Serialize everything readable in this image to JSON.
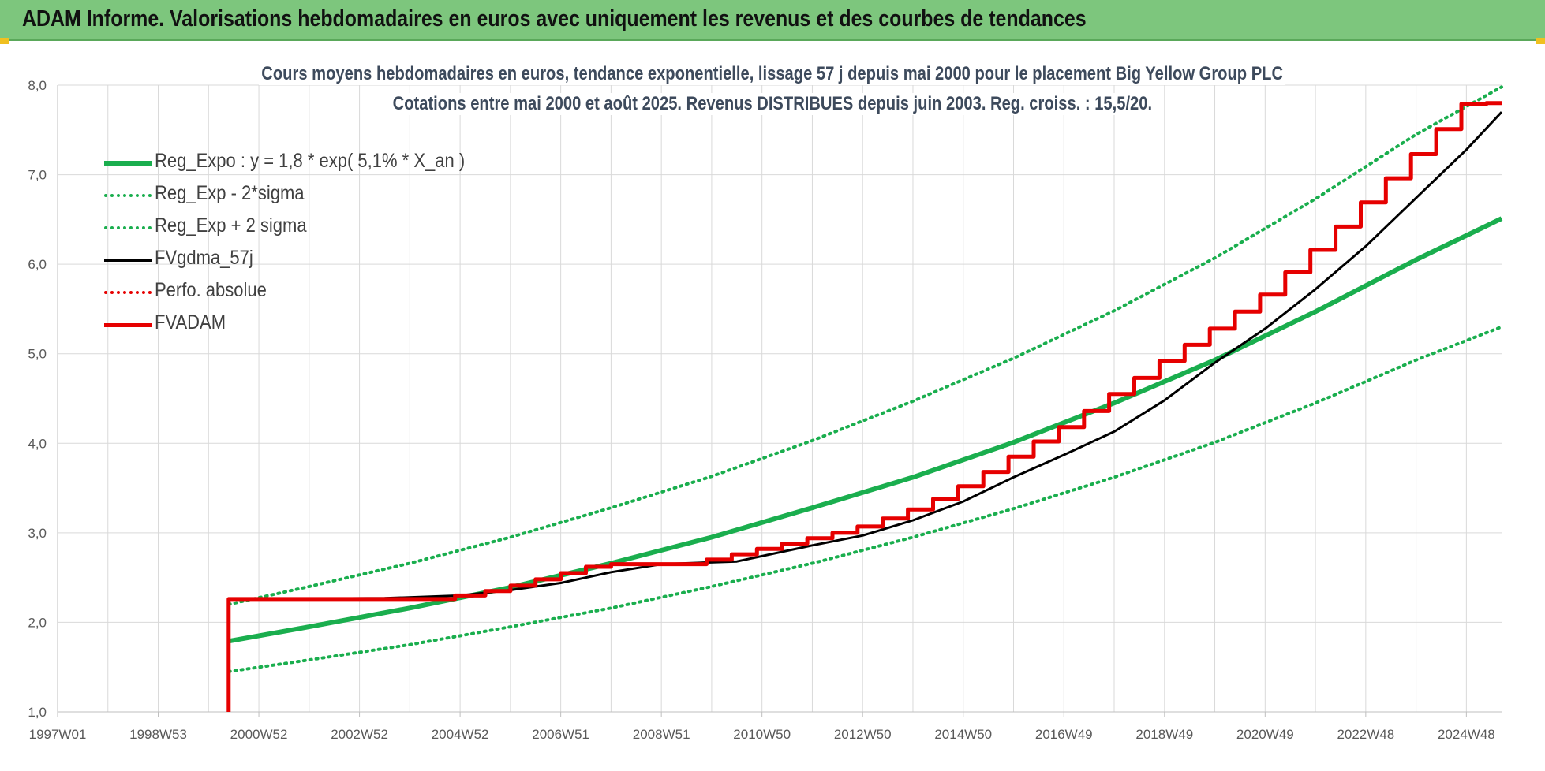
{
  "header": {
    "title": "ADAM Informe. Valorisations hebdomadaires en euros avec uniquement les revenus et des courbes de tendances"
  },
  "chart_data": {
    "type": "line",
    "title_line1": "Cours moyens hebdomadaires en euros, tendance exponentielle, lissage 57 j depuis mai 2000 pour le placement Big Yellow Group PLC",
    "title_line2": "Cotations entre mai 2000 et août 2025.  Revenus DISTRIBUES depuis juin 2003. Reg. croiss. : 15,5/20.",
    "x_tick_labels": [
      "1997W01",
      "1998W53",
      "2000W52",
      "2002W52",
      "2004W52",
      "2006W51",
      "2008W51",
      "2010W50",
      "2012W50",
      "2014W50",
      "2016W49",
      "2018W49",
      "2020W49",
      "2022W48",
      "2024W48"
    ],
    "x_tick_years": [
      1997.0,
      1999.0,
      2001.0,
      2003.0,
      2005.0,
      2007.0,
      2009.0,
      2011.0,
      2013.0,
      2015.0,
      2017.0,
      2019.0,
      2021.0,
      2023.0,
      2025.0
    ],
    "xlim": [
      1997.0,
      2025.7
    ],
    "ylim": [
      1.0,
      8.0
    ],
    "y_ticks": [
      "1,0",
      "2,0",
      "3,0",
      "4,0",
      "5,0",
      "6,0",
      "7,0",
      "8,0"
    ],
    "y_tick_values": [
      1,
      2,
      3,
      4,
      5,
      6,
      7,
      8
    ],
    "grid": true,
    "legend_position": "top-left",
    "colors": {
      "green": "#1aae4e",
      "black": "#000000",
      "red": "#e60000",
      "grid": "#d9d9d9"
    },
    "series": [
      {
        "name": "Reg_Expo : y = 1,8 * exp( 5,1% *  X_an )",
        "style": "solid-thick",
        "color": "#1aae4e",
        "x": [
          2000.4,
          2002,
          2004,
          2006,
          2008,
          2010,
          2012,
          2014,
          2016,
          2018,
          2020,
          2022,
          2024,
          2025.7
        ],
        "y": [
          1.79,
          1.95,
          2.16,
          2.39,
          2.66,
          2.95,
          3.28,
          3.62,
          4.01,
          4.45,
          4.93,
          5.47,
          6.05,
          6.51
        ]
      },
      {
        "name": "Reg_Exp - 2*sigma",
        "style": "dotted",
        "color": "#1aae4e",
        "x": [
          2000.4,
          2002,
          2004,
          2006,
          2008,
          2010,
          2012,
          2014,
          2016,
          2018,
          2020,
          2022,
          2024,
          2025.7
        ],
        "y": [
          1.45,
          1.58,
          1.75,
          1.95,
          2.16,
          2.4,
          2.66,
          2.95,
          3.27,
          3.62,
          4.01,
          4.45,
          4.93,
          5.3
        ]
      },
      {
        "name": "Reg_Exp + 2 sigma",
        "style": "dotted",
        "color": "#1aae4e",
        "x": [
          2000.4,
          2002,
          2004,
          2006,
          2008,
          2010,
          2012,
          2014,
          2016,
          2018,
          2020,
          2022,
          2024,
          2025.7
        ],
        "y": [
          2.2,
          2.4,
          2.66,
          2.95,
          3.28,
          3.63,
          4.03,
          4.47,
          4.95,
          5.48,
          6.07,
          6.73,
          7.45,
          7.98
        ]
      },
      {
        "name": "FVgdma_57j",
        "style": "solid",
        "color": "#000000",
        "x": [
          2000.4,
          2003.5,
          2005.0,
          2006.0,
          2007.0,
          2008.0,
          2009.0,
          2010.5,
          2012.0,
          2013.0,
          2014.0,
          2015.0,
          2016.0,
          2017.0,
          2018.0,
          2019.0,
          2020.0,
          2021.0,
          2022.0,
          2023.0,
          2024.0,
          2025.0,
          2025.7
        ],
        "y": [
          2.26,
          2.27,
          2.3,
          2.36,
          2.44,
          2.56,
          2.65,
          2.68,
          2.86,
          2.97,
          3.14,
          3.35,
          3.62,
          3.87,
          4.13,
          4.48,
          4.9,
          5.28,
          5.72,
          6.2,
          6.74,
          7.28,
          7.7
        ]
      },
      {
        "name": "Perfo. absolue",
        "style": "dotted",
        "color": "#e60000",
        "x": [],
        "y": []
      },
      {
        "name": "FVADAM",
        "style": "step-thick",
        "color": "#e60000",
        "x": [
          2000.4,
          2000.4,
          2004.9,
          2005.5,
          2006.0,
          2006.5,
          2007.0,
          2007.5,
          2008.0,
          2009.9,
          2010.4,
          2010.9,
          2011.4,
          2011.9,
          2012.4,
          2012.9,
          2013.4,
          2013.9,
          2014.4,
          2014.9,
          2015.4,
          2015.9,
          2016.4,
          2016.9,
          2017.4,
          2017.9,
          2018.4,
          2018.9,
          2019.4,
          2019.9,
          2020.4,
          2020.9,
          2021.4,
          2021.9,
          2022.4,
          2022.9,
          2023.4,
          2023.9,
          2024.4,
          2024.9,
          2025.4,
          2025.7
        ],
        "y": [
          1.0,
          2.26,
          2.3,
          2.35,
          2.41,
          2.48,
          2.55,
          2.62,
          2.65,
          2.7,
          2.76,
          2.82,
          2.88,
          2.94,
          3.0,
          3.07,
          3.16,
          3.26,
          3.38,
          3.52,
          3.68,
          3.85,
          4.02,
          4.18,
          4.36,
          4.55,
          4.73,
          4.92,
          5.1,
          5.28,
          5.47,
          5.66,
          5.91,
          6.16,
          6.42,
          6.69,
          6.96,
          7.23,
          7.51,
          7.79,
          7.8,
          7.8
        ]
      }
    ]
  }
}
